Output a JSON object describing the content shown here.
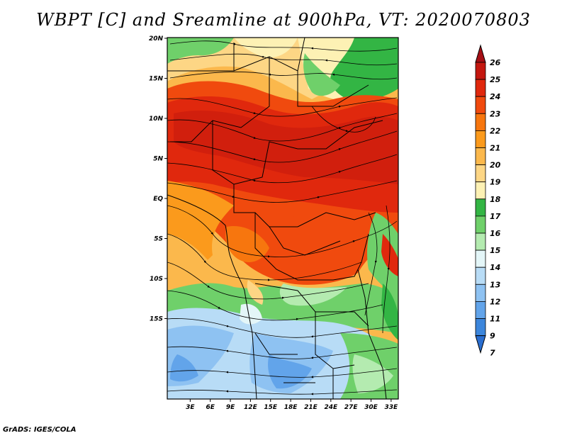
{
  "title": "WBPT [C] and Sreamline at 900hPa, VT: 2020070803",
  "credit": "GrADS: IGES/COLA",
  "map": {
    "lat_ticks": [
      {
        "value": 20,
        "label": "20N"
      },
      {
        "value": 15,
        "label": "15N"
      },
      {
        "value": 10,
        "label": "10N"
      },
      {
        "value": 5,
        "label": "5N"
      },
      {
        "value": 0,
        "label": "EQ"
      },
      {
        "value": -5,
        "label": "5S"
      },
      {
        "value": -10,
        "label": "10S"
      },
      {
        "value": -15,
        "label": "15S"
      }
    ],
    "lon_ticks": [
      {
        "value": 3,
        "label": "3E"
      },
      {
        "value": 6,
        "label": "6E"
      },
      {
        "value": 9,
        "label": "9E"
      },
      {
        "value": 12,
        "label": "12E"
      },
      {
        "value": 15,
        "label": "15E"
      },
      {
        "value": 18,
        "label": "18E"
      },
      {
        "value": 21,
        "label": "21E"
      },
      {
        "value": 24,
        "label": "24E"
      },
      {
        "value": 27,
        "label": "27E"
      },
      {
        "value": 30,
        "label": "30E"
      },
      {
        "value": 33,
        "label": "33E"
      }
    ]
  },
  "colorbar": {
    "levels": [
      {
        "label": "26",
        "color": "#a50f15"
      },
      {
        "label": "25",
        "color": "#c4170f"
      },
      {
        "label": "24",
        "color": "#e0280d"
      },
      {
        "label": "23",
        "color": "#f04a0e"
      },
      {
        "label": "22",
        "color": "#f7760e"
      },
      {
        "label": "21",
        "color": "#fb9a1c"
      },
      {
        "label": "20",
        "color": "#fbb84c"
      },
      {
        "label": "19",
        "color": "#fdd685"
      },
      {
        "label": "18",
        "color": "#fdf1b4"
      },
      {
        "label": "17",
        "color": "#33b544"
      },
      {
        "label": "16",
        "color": "#6fd06a"
      },
      {
        "label": "15",
        "color": "#b4ebb0"
      },
      {
        "label": "14",
        "color": "#e4f6f8"
      },
      {
        "label": "13",
        "color": "#b8dcf6"
      },
      {
        "label": "12",
        "color": "#8ec2f2"
      },
      {
        "label": "11",
        "color": "#62a4ea"
      },
      {
        "label": "9",
        "color": "#3c86dc"
      },
      {
        "label": "7",
        "color": "#2a6ed0"
      }
    ]
  }
}
